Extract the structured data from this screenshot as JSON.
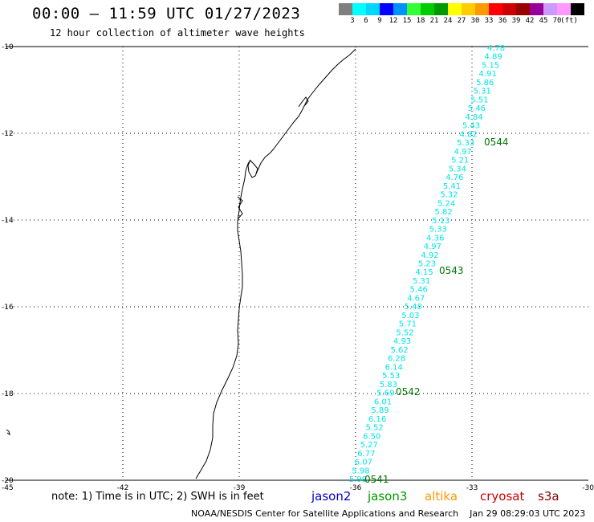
{
  "title": "00:00 – 11:59 UTC 01/27/2023",
  "subtitle": "12 hour collection of altimeter wave heights",
  "legend": {
    "colors": [
      "#7f7f7f",
      "#00ffff",
      "#00d6ff",
      "#0000ff",
      "#0090ff",
      "#33ff33",
      "#00cc00",
      "#009900",
      "#ffff00",
      "#ffcc00",
      "#ff9900",
      "#ff0000",
      "#cc0000",
      "#990000",
      "#990099",
      "#cc99ff",
      "#ff99ff",
      "#000000"
    ],
    "labels": [
      "3",
      "6",
      "9",
      "12",
      "15",
      "18",
      "21",
      "24",
      "27",
      "30",
      "33",
      "36",
      "39",
      "42",
      "45",
      "70"
    ],
    "unit": "(ft)"
  },
  "axes": {
    "lat_labels": [
      "-10",
      "-12",
      "-14",
      "-16",
      "-18",
      "-20"
    ],
    "lon_labels": [
      "-45",
      "-42",
      "-39",
      "-36",
      "-33",
      "-30"
    ]
  },
  "track": {
    "color": "#00e5e5",
    "values": [
      "4.78",
      "4.89",
      "5.15",
      "4.91",
      "5.86",
      "5.31",
      "5.51",
      "5.46",
      "4.84",
      "5.43",
      "4.82",
      "5.33",
      "4.97",
      "5.21",
      "5.34",
      "4.76",
      "5.41",
      "5.32",
      "5.24",
      "5.82",
      "5.13",
      "5.33",
      "4.36",
      "4.97",
      "4.92",
      "5.23",
      "4.15",
      "5.31",
      "5.46",
      "4.67",
      "5.48",
      "5.03",
      "5.71",
      "5.52",
      "4.93",
      "5.62",
      "6.28",
      "6.14",
      "5.53",
      "5.83",
      "5.69",
      "6.01",
      "5.89",
      "6.16",
      "5.52",
      "6.50",
      "5.27",
      "6.77",
      "6.07",
      "5.98",
      "5.99"
    ],
    "times": [
      "0544",
      "0543",
      "0542",
      "0541"
    ],
    "time_color": "#007700"
  },
  "note": "note: 1) Time is in UTC; 2) SWH is in feet",
  "satellites": [
    {
      "name": "jason2",
      "color": "#0000cc"
    },
    {
      "name": "jason3",
      "color": "#009900"
    },
    {
      "name": "altika",
      "color": "#ff9900"
    },
    {
      "name": "cryosat",
      "color": "#cc0000"
    },
    {
      "name": "s3a",
      "color": "#880000"
    }
  ],
  "footer": "NOAA/NESDIS Center for Satellite Applications and Research    Jan 29 08:29:03 UTC 2023"
}
